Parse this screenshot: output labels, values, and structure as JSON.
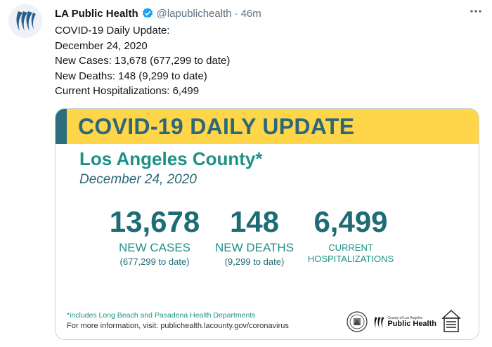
{
  "tweet": {
    "display_name": "LA Public Health",
    "handle": "@lapublichealth",
    "separator": "·",
    "time": "46m",
    "more_icon": "more-icon",
    "lines": [
      "COVID-19 Daily Update:",
      "December 24, 2020",
      "New Cases: 13,678 (677,299 to date)",
      "New Deaths: 148 (9,299 to date)",
      "Current Hospitalizations: 6,499"
    ]
  },
  "card": {
    "title_bold": "COVID-19",
    "title_rest": "DAILY UPDATE",
    "county": "Los Angeles County*",
    "date": "December 24, 2020",
    "stats": {
      "cases": {
        "value": "13,678",
        "label": "NEW CASES",
        "sub": "(677,299 to date)"
      },
      "deaths": {
        "value": "148",
        "label": "NEW DEATHS",
        "sub": "(9,299 to date)"
      },
      "hosp": {
        "value": "6,499",
        "label_line1": "CURRENT",
        "label_line2": "HOSPITALIZATIONS"
      }
    },
    "footnote": "*includes Long Beach and Pasadena Health Departments",
    "more_info": "For more information, visit: publichealth.lacounty.gov/coronavirus",
    "logo": {
      "small": "County of Los Angeles",
      "big": "Public Health"
    }
  },
  "colors": {
    "banner": "#ffd54a",
    "banner_accent": "#2d6e7e",
    "teal_dark": "#1e6c76",
    "teal": "#1e9186",
    "verified": "#1da1f2"
  }
}
